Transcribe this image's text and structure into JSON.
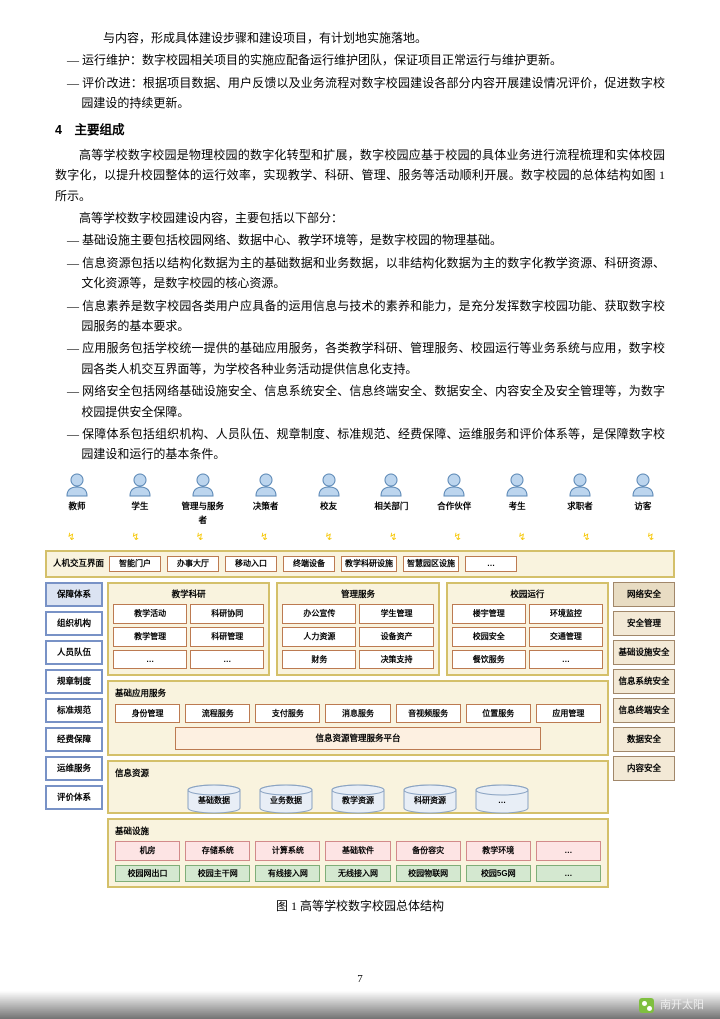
{
  "intro_para": "与内容，形成具体建设步骤和建设项目，有计划地实施落地。",
  "top_items": [
    "运行维护：数字校园相关项目的实施应配备运行维护团队，保证项目正常运行与维护更新。",
    "评价改进：根据项目数据、用户反馈以及业务流程对数字校园建设各部分内容开展建设情况评价，促进数字校园建设的持续更新。"
  ],
  "h4": "4　主要组成",
  "p1": "高等学校数字校园是物理校园的数字化转型和扩展，数字校园应基于校园的具体业务进行流程梳理和实体校园数字化，以提升校园整体的运行效率，实现教学、科研、管理、服务等活动顺利开展。数字校园的总体结构如图 1 所示。",
  "p2": "高等学校数字校园建设内容，主要包括以下部分：",
  "list": [
    "基础设施主要包括校园网络、数据中心、教学环境等，是数字校园的物理基础。",
    "信息资源包括以结构化数据为主的基础数据和业务数据，以非结构化数据为主的数字化教学资源、科研资源、文化资源等，是数字校园的核心资源。",
    "信息素养是数字校园各类用户应具备的运用信息与技术的素养和能力，是充分发挥数字校园功能、获取数字校园服务的基本要求。",
    "应用服务包括学校统一提供的基础应用服务，各类教学科研、管理服务、校园运行等业务系统与应用，数字校园各类人机交互界面等，为学校各种业务活动提供信息化支持。",
    "网络安全包括网络基础设施安全、信息系统安全、信息终端安全、数据安全、内容安全及安全管理等，为数字校园提供安全保障。",
    "保障体系包括组织机构、人员队伍、规章制度、标准规范、经费保障、运维服务和评价体系等，是保障数字校园建设和运行的基本条件。"
  ],
  "actors": [
    "教师",
    "学生",
    "管理与服务者",
    "决策者",
    "校友",
    "相关部门",
    "合作伙伴",
    "考生",
    "求职者",
    "访客"
  ],
  "hmi": {
    "title": "人机交互界面",
    "items": [
      "智能门户",
      "办事大厅",
      "移动入口",
      "终端设备",
      "教学科研设施",
      "智慧园区设施",
      "…"
    ]
  },
  "left_title": "保障体系",
  "left": [
    "组织机构",
    "人员队伍",
    "规章制度",
    "标准规范",
    "经费保障",
    "运维服务",
    "评价体系"
  ],
  "svc": [
    {
      "t": "教学科研",
      "c": [
        "教学活动",
        "科研协同",
        "教学管理",
        "科研管理",
        "…",
        "…"
      ]
    },
    {
      "t": "管理服务",
      "c": [
        "办公宣传",
        "学生管理",
        "人力资源",
        "设备资产",
        "财务",
        "决策支持"
      ]
    },
    {
      "t": "校园运行",
      "c": [
        "楼宇管理",
        "环境监控",
        "校园安全",
        "交通管理",
        "餐饮服务",
        "…"
      ]
    }
  ],
  "sec_title": "网络安全",
  "sec": [
    "安全管理",
    "基础设施安全",
    "信息系统安全",
    "信息终端安全",
    "数据安全",
    "内容安全"
  ],
  "base_app": {
    "t": "基础应用服务",
    "c": [
      "身份管理",
      "流程服务",
      "支付服务",
      "消息服务",
      "音视频服务",
      "位置服务",
      "应用管理"
    ]
  },
  "platform": "信息资源管理服务平台",
  "info_res": {
    "t": "信息资源",
    "c": [
      "基础数据",
      "业务数据",
      "教学资源",
      "科研资源",
      "…"
    ]
  },
  "infra": {
    "t": "基础设施",
    "c": [
      "机房",
      "存储系统",
      "计算系统",
      "基础软件",
      "备份容灾",
      "教学环境",
      "…"
    ]
  },
  "net": [
    "校园网出口",
    "校园主干网",
    "有线接入网",
    "无线接入网",
    "校园物联网",
    "校园5G网",
    "…"
  ],
  "caption": "图 1 高等学校数字校园总体结构",
  "page": "7",
  "footer": "南开太阳"
}
